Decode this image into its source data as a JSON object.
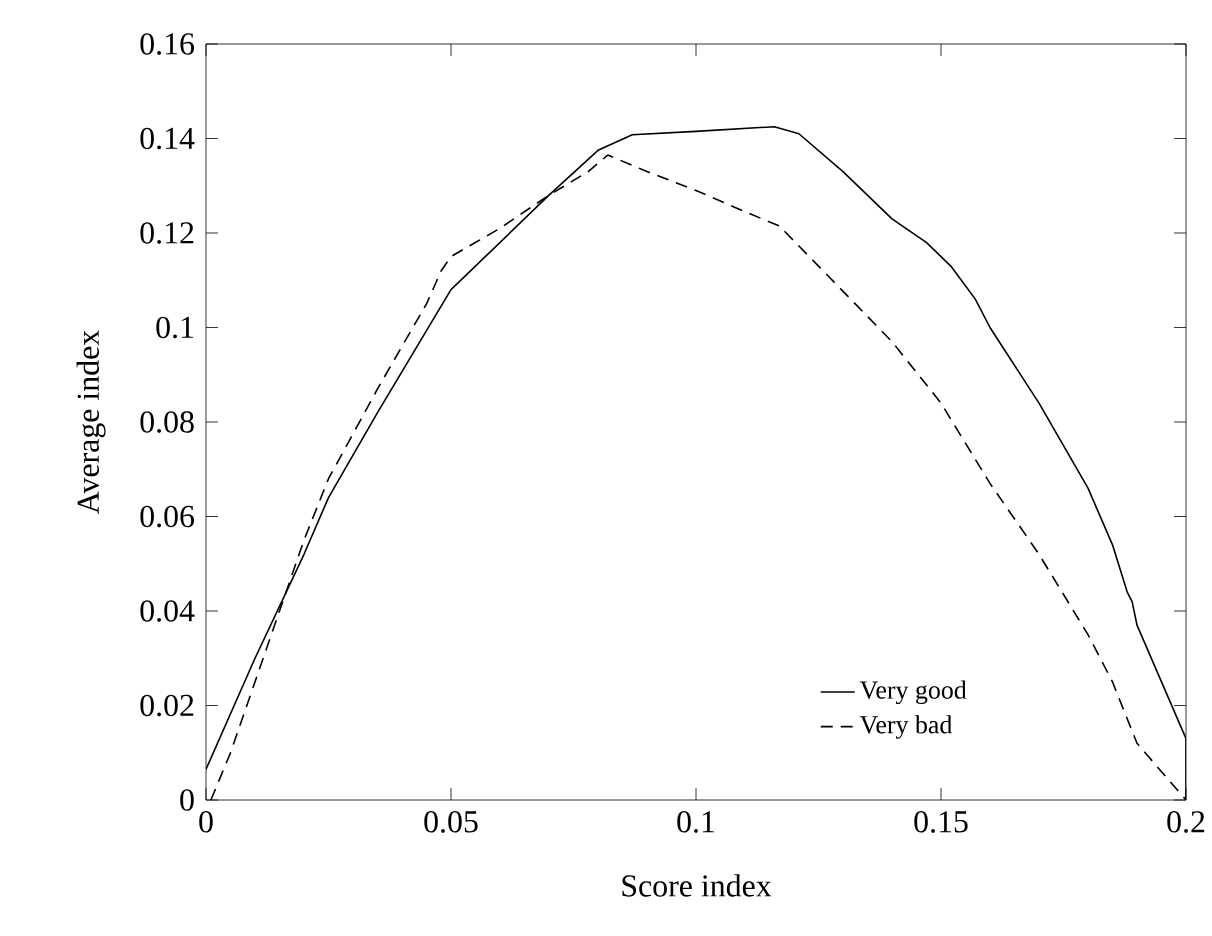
{
  "chart_data": {
    "type": "line",
    "xlabel": "Score index",
    "ylabel": "Average index",
    "xlim": [
      0,
      0.2
    ],
    "ylim": [
      0,
      0.16
    ],
    "xticks": [
      0,
      0.05,
      0.1,
      0.15,
      0.2
    ],
    "yticks": [
      0,
      0.02,
      0.04,
      0.06,
      0.08,
      0.1,
      0.12,
      0.14,
      0.16
    ],
    "grid": false,
    "legend": "bottom right",
    "series": [
      {
        "name": "Very good",
        "color": "#000000",
        "line_style": "solid",
        "x": [
          0,
          0.01,
          0.02,
          0.025,
          0.035,
          0.05,
          0.06,
          0.07,
          0.08,
          0.087,
          0.1,
          0.116,
          0.121,
          0.13,
          0.14,
          0.147,
          0.152,
          0.157,
          0.16,
          0.17,
          0.18,
          0.185,
          0.188,
          0.189,
          0.19,
          0.195,
          0.2,
          0.2
        ],
        "values": [
          0.0065,
          0.03,
          0.052,
          0.064,
          0.082,
          0.108,
          0.118,
          0.128,
          0.1375,
          0.1408,
          0.1415,
          0.1425,
          0.141,
          0.133,
          0.123,
          0.118,
          0.113,
          0.106,
          0.1,
          0.084,
          0.066,
          0.054,
          0.044,
          0.042,
          0.037,
          0.025,
          0.013,
          0
        ]
      },
      {
        "name": "Very bad",
        "color": "#000000",
        "line_style": "dashed",
        "x": [
          0.001,
          0.005,
          0.01,
          0.015,
          0.02,
          0.025,
          0.035,
          0.045,
          0.048,
          0.05,
          0.06,
          0.07,
          0.078,
          0.082,
          0.09,
          0.1,
          0.11,
          0.117,
          0.125,
          0.14,
          0.15,
          0.16,
          0.17,
          0.18,
          0.185,
          0.19,
          0.2
        ],
        "values": [
          0,
          0.01,
          0.025,
          0.04,
          0.055,
          0.068,
          0.087,
          0.105,
          0.112,
          0.115,
          0.121,
          0.128,
          0.133,
          0.1365,
          0.133,
          0.129,
          0.1245,
          0.1215,
          0.113,
          0.097,
          0.084,
          0.067,
          0.052,
          0.035,
          0.025,
          0.012,
          0
        ]
      }
    ]
  }
}
